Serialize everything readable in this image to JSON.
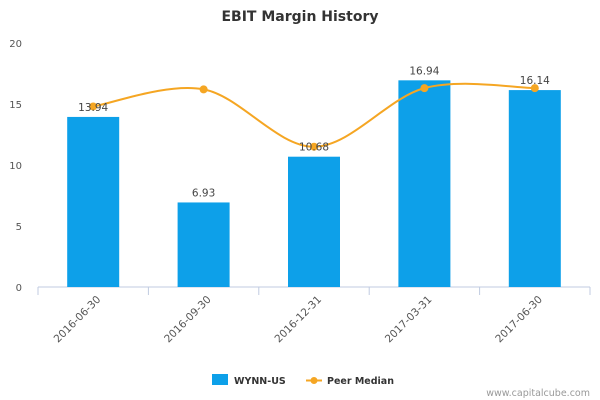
{
  "chart_data": {
    "type": "bar",
    "title": "EBIT Margin History",
    "categories": [
      "2016-06-30",
      "2016-09-30",
      "2016-12-31",
      "2017-03-31",
      "2017-06-30"
    ],
    "series": [
      {
        "name": "WYNN-US",
        "kind": "bar",
        "color": "#0da0e9",
        "values": [
          13.94,
          6.93,
          10.68,
          16.94,
          16.14
        ],
        "labels": [
          "13.94",
          "6.93",
          "10.68",
          "16.94",
          "16.14"
        ]
      },
      {
        "name": "Peer Median",
        "kind": "line",
        "color": "#f5a623",
        "values": [
          14.8,
          16.2,
          11.5,
          16.3,
          16.3
        ]
      }
    ],
    "ylim": [
      0,
      20
    ],
    "yticks": [
      "0",
      "5",
      "10",
      "15",
      "20"
    ],
    "grid": false,
    "legend_position": "bottom-center"
  },
  "watermark": "www.capitalcube.com"
}
